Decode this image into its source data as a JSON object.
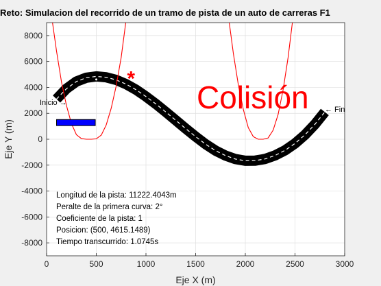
{
  "chart_data": {
    "type": "line",
    "title": "Reto: Simulacion del recorrido de un tramo de pista de un auto de carreras F1",
    "xlabel": "Eje X (m)",
    "ylabel": "Eje Y (m)",
    "xlim": [
      0,
      3000
    ],
    "ylim": [
      -9000,
      9000
    ],
    "xticks": [
      0,
      500,
      1000,
      1500,
      2000,
      2500,
      3000
    ],
    "yticks": [
      -8000,
      -6000,
      -4000,
      -2000,
      0,
      2000,
      4000,
      6000,
      8000
    ],
    "grid": true,
    "series": [
      {
        "x": [
          100,
          200,
          300,
          400,
          500,
          600,
          700,
          800,
          900,
          1000,
          1100,
          1200,
          1300,
          1400,
          1500,
          1600,
          1700,
          1800,
          1900,
          2000,
          2100,
          2200,
          2300,
          2400,
          2500,
          2600,
          2700,
          2800
        ],
        "y": [
          3100,
          3900,
          4450,
          4750,
          4850,
          4780,
          4580,
          4250,
          3820,
          3300,
          2720,
          2100,
          1460,
          820,
          200,
          -380,
          -880,
          -1260,
          -1530,
          -1660,
          -1650,
          -1520,
          -1250,
          -860,
          -330,
          340,
          1150,
          2100
        ],
        "color": "#000000",
        "style": "thick track with dashed white centerline"
      },
      {
        "x": [
          50,
          100,
          150,
          200,
          250,
          300,
          350,
          400,
          450,
          500,
          550,
          600,
          650,
          700,
          750,
          800
        ],
        "y": [
          9500,
          6800,
          4400,
          2600,
          1200,
          350,
          50,
          0,
          0,
          30,
          320,
          1100,
          2400,
          4100,
          6300,
          9200
        ],
        "color": "#ff0000",
        "style": "first curve parabola"
      },
      {
        "x": [
          1830,
          1880,
          1930,
          1980,
          2030,
          2080,
          2130,
          2180,
          2230,
          2280,
          2330,
          2380,
          2430,
          2480
        ],
        "y": [
          9500,
          6600,
          4200,
          2300,
          900,
          200,
          0,
          0,
          100,
          700,
          1900,
          3800,
          6300,
          9400
        ],
        "color": "#ff0000",
        "style": "second curve parabola"
      }
    ],
    "car_position": {
      "x": 500,
      "y": 4615.1489
    },
    "collision_marker": {
      "x": 850,
      "y": 5000,
      "symbol": "*",
      "color": "#ff0000"
    },
    "car_rect": {
      "x0": 100,
      "x1": 490,
      "y0": 1050,
      "y1": 1520,
      "color": "#0000ff"
    },
    "annotations": [
      {
        "text": "Colisión",
        "x": 1500,
        "y": 3200,
        "color": "#ff0000"
      },
      {
        "text": "Inicio →",
        "x": 0,
        "y": 2800
      },
      {
        "text": "← Fin",
        "x": 2830,
        "y": 2300
      }
    ],
    "info_lines": [
      "Longitud de la pista: 11222.4043m",
      "Peralte de la primera curva: 2°",
      "Coeficiente de la pista: 1",
      "Posicion: (500, 4615.1489)",
      "Tiempo transcurrido: 1.0745s"
    ]
  }
}
